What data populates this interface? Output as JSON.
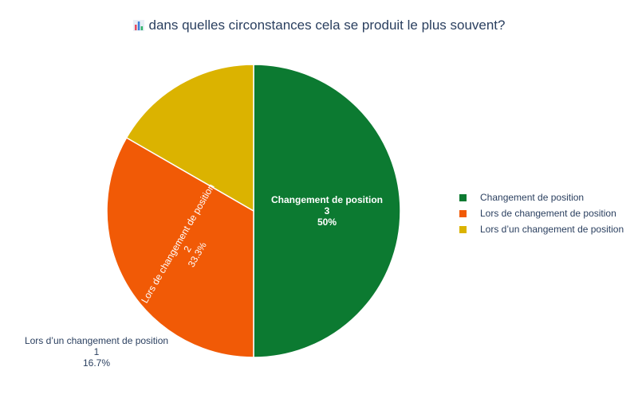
{
  "title": "dans quelles circonstances cela se produit le plus souvent?",
  "chart_data": {
    "type": "pie",
    "title": "dans quelles circonstances cela se produit le plus souvent?",
    "slices": [
      {
        "label": "Changement de position",
        "value": 3,
        "percent": "50%",
        "color": "#0c7a31"
      },
      {
        "label": "Lors de changement de position",
        "value": 2,
        "percent": "33.3%",
        "color": "#f15a06"
      },
      {
        "label": "Lors d’un changement de position",
        "value": 1,
        "percent": "16.7%",
        "color": "#dbb300"
      }
    ],
    "legend_position": "right"
  }
}
